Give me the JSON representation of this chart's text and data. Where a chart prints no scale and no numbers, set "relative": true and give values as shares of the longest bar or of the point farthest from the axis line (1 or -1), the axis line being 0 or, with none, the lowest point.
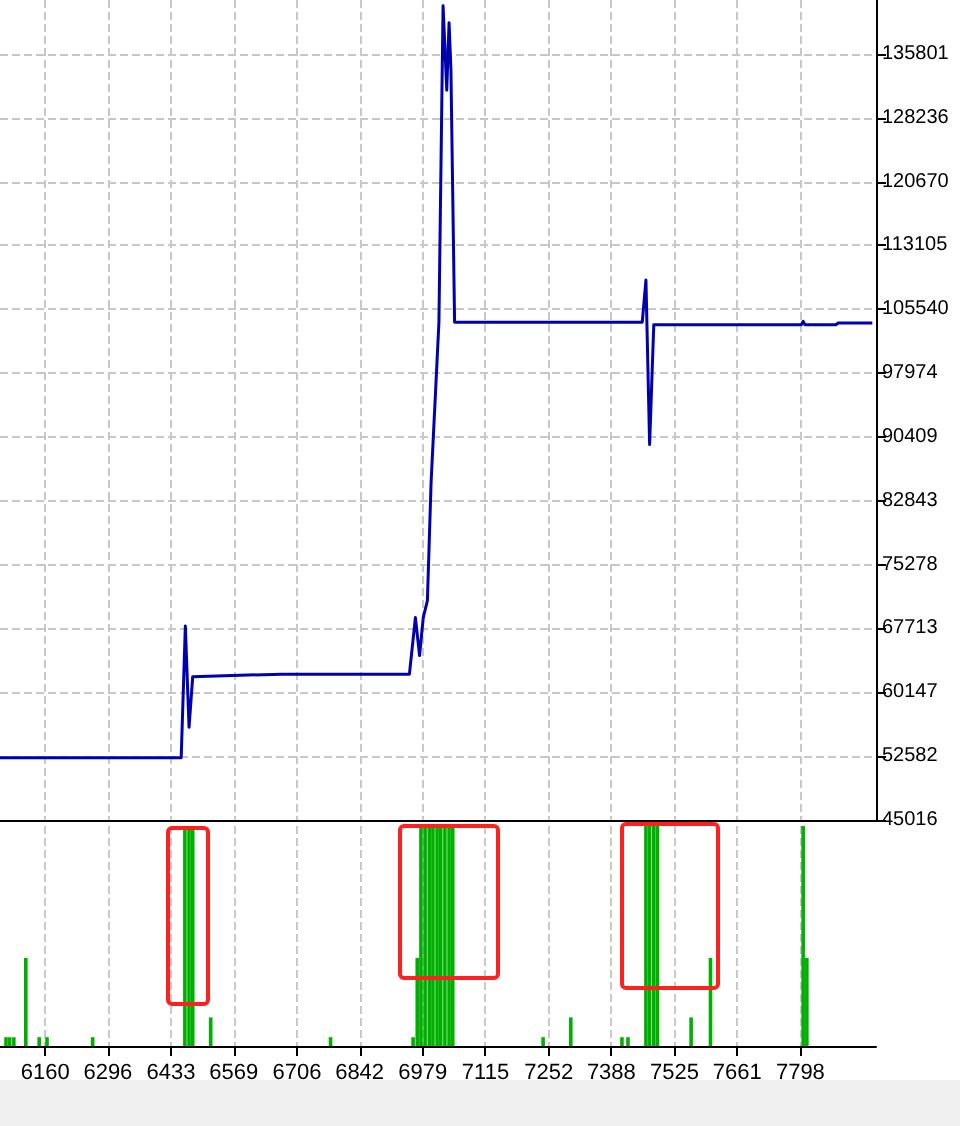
{
  "chart_data": [
    {
      "type": "line",
      "x": [
        6062,
        6455,
        6464,
        6472,
        6480,
        6673,
        6950,
        6963,
        6972,
        6980,
        6989,
        6997,
        7006,
        7014,
        7023,
        7031,
        7036,
        7040,
        7048,
        7455,
        7463,
        7471,
        7480,
        7800,
        7804,
        7808,
        7875,
        7880,
        7954
      ],
      "series": [
        {
          "color": "#0000b0",
          "values": [
            52400,
            52400,
            68000,
            56000,
            62000,
            62300,
            62300,
            69000,
            64500,
            69000,
            71000,
            85000,
            95000,
            104000,
            141500,
            131500,
            139500,
            134000,
            104000,
            104000,
            109000,
            89500,
            103700,
            103700,
            104100,
            103700,
            103700,
            103900,
            103900
          ]
        }
      ],
      "xlim": [
        6062,
        7962
      ],
      "xticks": [
        6160,
        6296,
        6433,
        6569,
        6706,
        6842,
        6979,
        7115,
        7252,
        7388,
        7525,
        7661,
        7798
      ],
      "ylim": [
        45016,
        142184
      ],
      "yticks": [
        45016,
        52582,
        60147,
        67713,
        75278,
        82843,
        90409,
        97974,
        105540,
        113105,
        120670,
        128236,
        135801
      ],
      "grid": true,
      "tick_labels": "y",
      "marker": "none",
      "line_style": "solid"
    },
    {
      "type": "bar",
      "relative": true,
      "x": [
        6075,
        6083,
        6092,
        6118,
        6147,
        6164,
        6263,
        6463,
        6472,
        6480,
        6519,
        6779,
        6958,
        6967,
        6975,
        6984,
        6993,
        7001,
        7010,
        7018,
        7027,
        7036,
        7044,
        7240,
        7300,
        7411,
        7424,
        7463,
        7471,
        7480,
        7488,
        7561,
        7603,
        7804,
        7812
      ],
      "series": [
        {
          "color": "#00b000",
          "values": [
            0.04,
            0.04,
            0.04,
            0.4,
            0.04,
            0.04,
            0.04,
            1,
            1,
            1,
            0.13,
            0.04,
            0.04,
            0.4,
            1,
            1,
            1,
            1,
            1,
            1,
            1,
            1,
            1,
            0.04,
            0.13,
            0.04,
            0.04,
            1,
            1,
            1,
            1,
            0.13,
            0.4,
            1,
            0.4
          ]
        }
      ],
      "xlim": [
        6062,
        7962
      ],
      "xticks": [
        6160,
        6296,
        6433,
        6569,
        6706,
        6842,
        6979,
        7115,
        7252,
        7388,
        7525,
        7661,
        7798
      ],
      "grid": "x",
      "tick_labels": "x"
    }
  ]
}
